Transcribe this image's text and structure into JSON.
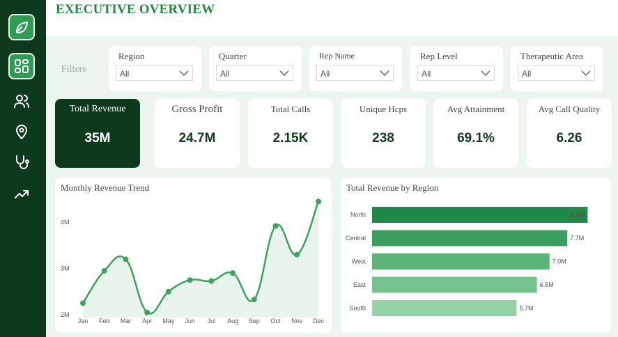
{
  "sidebar": {
    "items": [
      {
        "name": "logo-leaf-icon",
        "label": ""
      },
      {
        "name": "dashboard-icon",
        "label": ""
      },
      {
        "name": "users-icon",
        "label": ""
      },
      {
        "name": "location-pin-icon",
        "label": ""
      },
      {
        "name": "stethoscope-icon",
        "label": ""
      },
      {
        "name": "trending-up-icon",
        "label": ""
      }
    ]
  },
  "header": {
    "title": "EXECUTIVE OVERVIEW"
  },
  "filters": {
    "label": "Filters",
    "items": [
      {
        "label": "Region",
        "value": "All"
      },
      {
        "label": "Quarter",
        "value": "All"
      },
      {
        "label": "Rep Name",
        "value": "All"
      },
      {
        "label": "Rep Level",
        "value": "All"
      },
      {
        "label": "Therapeutic Area",
        "value": "All"
      }
    ]
  },
  "kpis": [
    {
      "label": "Total Revenue",
      "value": "35M"
    },
    {
      "label": "Gross Profit",
      "value": "24.7M"
    },
    {
      "label": "Total Calls",
      "value": "2.15K"
    },
    {
      "label": "Unique Hcps",
      "value": "238"
    },
    {
      "label": "Avg Attainment",
      "value": "69.1%"
    },
    {
      "label": "Avg Call Quality",
      "value": "6.26"
    }
  ],
  "colors": {
    "sidebar": "#0d3a1c",
    "accent": "#1f8a40",
    "line": "#3aa35c",
    "bars": [
      "#1f8a48",
      "#3a9f5e",
      "#5cb478",
      "#74c28c",
      "#93d3a5"
    ]
  },
  "chart_data": [
    {
      "type": "line",
      "title": "Monthly Revenue Trend",
      "categories": [
        "Jan",
        "Feb",
        "Mar",
        "Apr",
        "May",
        "Jun",
        "Jul",
        "Aug",
        "Sep",
        "Oct",
        "Nov",
        "Dec"
      ],
      "values": [
        2.25,
        2.95,
        3.2,
        2.05,
        2.5,
        2.75,
        2.73,
        2.9,
        2.33,
        3.92,
        3.3,
        4.45
      ],
      "yticks": [
        "2M",
        "3M",
        "4M"
      ],
      "ylim": [
        2,
        4.5
      ]
    },
    {
      "type": "bar",
      "orientation": "horizontal",
      "title": "Total Revenue by Region",
      "categories": [
        "North",
        "Central",
        "West",
        "East",
        "South"
      ],
      "values": [
        8.5,
        7.7,
        7.0,
        6.5,
        5.7
      ],
      "value_labels": [
        "8.5M",
        "7.7M",
        "7.0M",
        "6.5M",
        "5.7M"
      ],
      "xlim": [
        0,
        8.6
      ]
    }
  ]
}
